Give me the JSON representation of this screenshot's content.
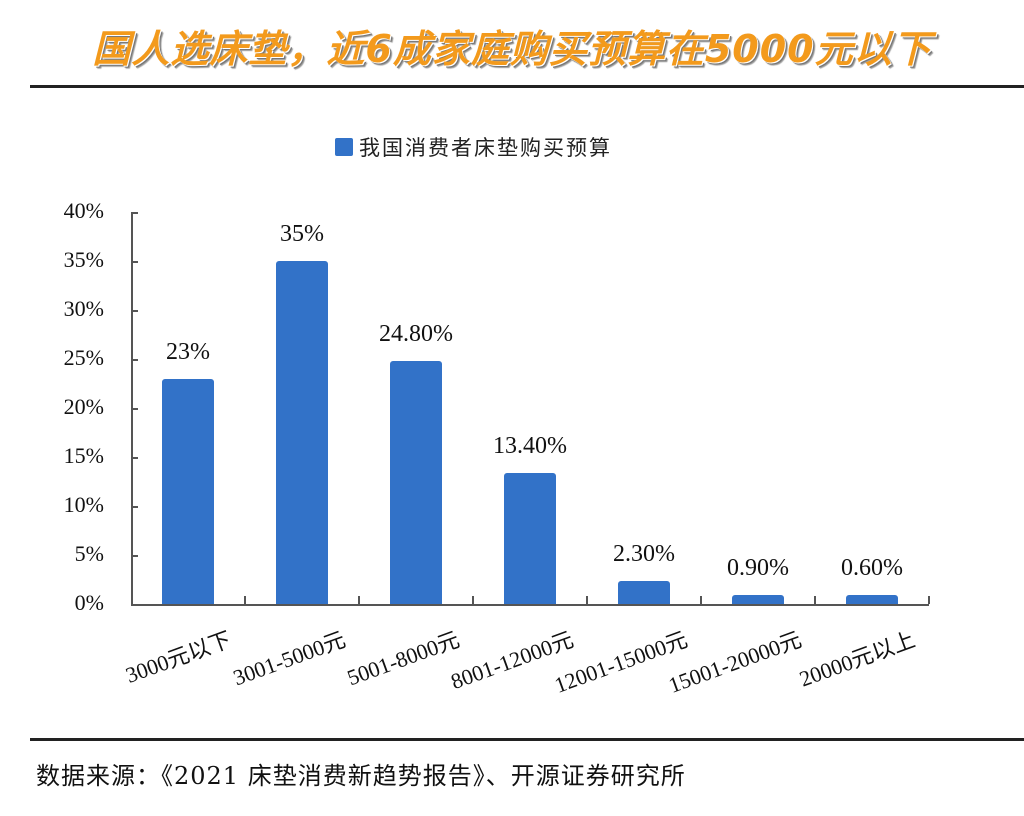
{
  "headline": "国人选床垫，近6成家庭购买预算在5000元以下",
  "legend": {
    "label": "我国消费者床垫购买预算",
    "color": "#3272c8"
  },
  "source": "数据来源：《2021 床垫消费新趋势报告》、开源证券研究所",
  "y_ticks": [
    "40%",
    "35%",
    "30%",
    "25%",
    "20%",
    "15%",
    "10%",
    "5%",
    "0%"
  ],
  "bars": [
    {
      "category": "3000元以下",
      "value": 23,
      "label": "23%"
    },
    {
      "category": "3001-5000元",
      "value": 35,
      "label": "35%"
    },
    {
      "category": "5001-8000元",
      "value": 24.8,
      "label": "24.80%"
    },
    {
      "category": "8001-12000元",
      "value": 13.4,
      "label": "13.40%"
    },
    {
      "category": "12001-15000元",
      "value": 2.3,
      "label": "2.30%"
    },
    {
      "category": "15001-20000元",
      "value": 0.9,
      "label": "0.90%"
    },
    {
      "category": "20000元以上",
      "value": 0.6,
      "label": "0.60%"
    }
  ],
  "chart_data": {
    "type": "bar",
    "title": "国人选床垫，近6成家庭购买预算在5000元以下",
    "categories": [
      "3000元以下",
      "3001-5000元",
      "5001-8000元",
      "8001-12000元",
      "12001-15000元",
      "15001-20000元",
      "20000元以上"
    ],
    "series": [
      {
        "name": "我国消费者床垫购买预算",
        "values": [
          23,
          35,
          24.8,
          13.4,
          2.3,
          0.9,
          0.6
        ],
        "color": "#3272c8"
      }
    ],
    "data_labels": [
      "23%",
      "35%",
      "24.80%",
      "13.40%",
      "2.30%",
      "0.90%",
      "0.60%"
    ],
    "xlabel": "",
    "ylabel": "",
    "ylim": [
      0,
      40
    ],
    "y_tick_labels": [
      "0%",
      "5%",
      "10%",
      "15%",
      "20%",
      "25%",
      "30%",
      "35%",
      "40%"
    ],
    "grid": false,
    "legend_position": "top",
    "source": "数据来源：《2021 床垫消费新趋势报告》、开源证券研究所"
  }
}
